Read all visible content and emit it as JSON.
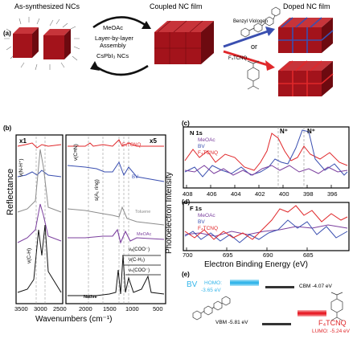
{
  "panel_a": {
    "label": "(a)",
    "title_left": "As-synthesized NCs",
    "title_mid": "Coupled NC film",
    "title_right": "Doped NC film",
    "arrow_top_label": "MeOAc",
    "lbl_assembly_1": "Layer-by-layer",
    "lbl_assembly_2": "Assembly",
    "arrow_bottom_label": "CsPbI₃ NCs",
    "bv_label": "Benzyl Viologen",
    "or_label": "or",
    "f4_label": "F₄TCNQ"
  },
  "panel_b": {
    "label": "(b)",
    "x1": "x1",
    "x5": "x5",
    "ylabel": "Reflectance",
    "xlabel": "Wavenumbers (cm⁻¹)",
    "ticks_left": [
      "3500",
      "3000",
      "2500"
    ],
    "ticks_right": [
      "2000",
      "1500",
      "1000",
      "500"
    ],
    "trace_f4": "F₄TCNQ",
    "trace_bv": "BV",
    "trace_toluene": "Toluene",
    "trace_meoac": "MeOAc",
    "trace_native": "Native",
    "ann_nh": "ν(N-H⁺)",
    "ann_ch": "ν(C-H)",
    "ann_cn": "ν(C≡N)",
    "ann_ring": "s(A₁ ring)",
    "ann_coo1": "νₐ(COO⁻)",
    "ann_ch2": "ν(C-H₂)",
    "ann_coo2": "νₛ(COO⁻)"
  },
  "panel_c": {
    "label": "(c)",
    "element": "N 1s",
    "peak1": "N⁺",
    "peak2": "N⁺",
    "legend": [
      "MeOAc",
      "BV",
      "F₄TCNQ"
    ],
    "ticks": [
      "408",
      "406",
      "404",
      "402",
      "400",
      "398",
      "396"
    ]
  },
  "panel_d": {
    "label": "(d)",
    "element": "F 1s",
    "legend": [
      "MeOAc",
      "BV",
      "F₄TCNQ"
    ],
    "ticks": [
      "700",
      "695",
      "690",
      "685"
    ]
  },
  "panel_cd": {
    "ylabel": "Photoelectron Intensity",
    "xlabel": "Electron Binding Energy (eV)"
  },
  "panel_e": {
    "label": "(e)",
    "bv": "BV",
    "homo_line1": "HOMO:",
    "homo_line2": "-3.65 eV",
    "cbm": "CBM -4.07 eV",
    "vbm": "VBM -5.81 eV",
    "f4": "F₄TCNQ",
    "lumo": "LUMO: -5.24 eV"
  },
  "colors": {
    "meoac": "#7b3f9e",
    "bv": "#3a4fb0",
    "f4tcnq": "#e0282b",
    "toluene": "#8c8c8c",
    "native": "#111111",
    "cube_front": "#a3131b",
    "cube_top": "#c7343a",
    "cube_side": "#6d0a10",
    "homo_bar": "#35b6ea",
    "lumo_bar": "#e8202a"
  }
}
